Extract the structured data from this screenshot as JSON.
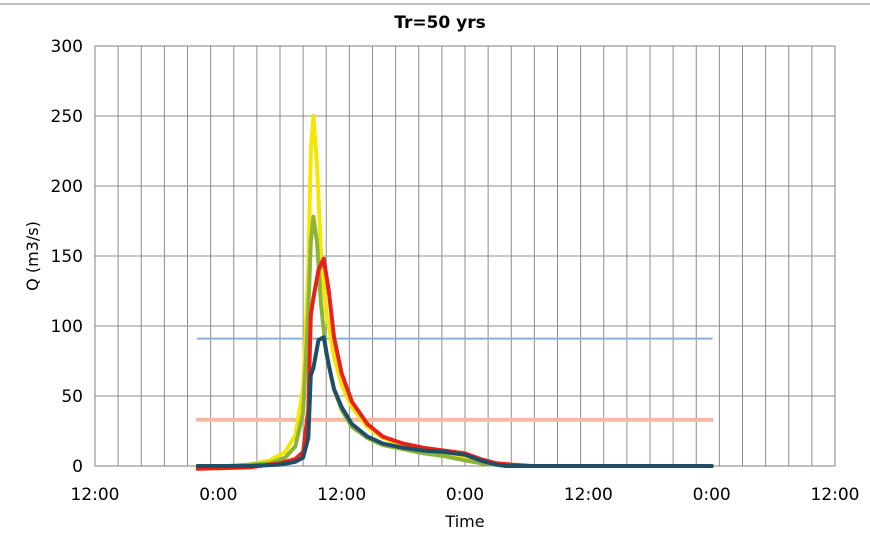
{
  "chart_data": {
    "type": "line",
    "title": "Tr=50 yrs",
    "xlabel": "Time",
    "ylabel": "Q (m3/s)",
    "ylim": [
      0,
      300
    ],
    "xlim_hours": [
      0,
      144
    ],
    "x_tick_labels": [
      "12:00",
      "0:00",
      "12:00",
      "0:00",
      "12:00",
      "0:00",
      "12:00"
    ],
    "y_tick_labels": [
      "0",
      "50",
      "100",
      "150",
      "200",
      "250",
      "300"
    ],
    "y_ticks": [
      0,
      50,
      100,
      150,
      200,
      250,
      300
    ],
    "grid": true,
    "legend": "none",
    "series": [
      {
        "color": "#f5e600",
        "x": [
          20,
          26,
          30,
          34,
          37,
          39,
          40.5,
          41.5,
          42,
          42.5,
          43.2,
          44,
          45,
          46.5,
          48,
          50,
          53,
          56,
          60,
          64,
          68,
          72,
          75,
          78,
          81,
          85,
          90,
          100,
          110,
          120
        ],
        "y": [
          0,
          0,
          1,
          4,
          10,
          22,
          55,
          140,
          225,
          250,
          215,
          150,
          110,
          78,
          58,
          42,
          28,
          20,
          15,
          11,
          8,
          5,
          3,
          2,
          1,
          0,
          0,
          0,
          0,
          0
        ]
      },
      {
        "color": "#8db33b",
        "x": [
          20,
          26,
          30,
          34,
          37,
          39,
          40.5,
          41.5,
          42,
          42.5,
          43.2,
          44,
          45,
          46.5,
          48,
          50,
          53,
          56,
          60,
          64,
          68,
          72,
          75,
          78,
          81,
          85,
          90,
          100,
          110,
          120
        ],
        "y": [
          0,
          0,
          1,
          2,
          6,
          14,
          38,
          110,
          160,
          178,
          160,
          115,
          80,
          55,
          40,
          28,
          20,
          15,
          12,
          9,
          7,
          4,
          2,
          1,
          0,
          0,
          0,
          0,
          0,
          0
        ]
      },
      {
        "color": "#e8221b",
        "x": [
          20,
          30,
          36,
          39,
          40.5,
          41.5,
          42,
          42.5,
          43.5,
          44.5,
          45.5,
          46.5,
          48,
          50,
          53,
          56,
          60,
          64,
          68,
          72,
          75,
          78,
          81,
          85,
          90,
          100,
          110,
          120
        ],
        "y": [
          -2,
          -1,
          2,
          5,
          10,
          40,
          108,
          120,
          140,
          148,
          125,
          92,
          66,
          46,
          30,
          21,
          16,
          13,
          11,
          9,
          5,
          2,
          1,
          0,
          0,
          0,
          0,
          0
        ]
      },
      {
        "color": "#1f4e66",
        "x": [
          20,
          30,
          36,
          39,
          40.5,
          41.5,
          42,
          42.5,
          43.5,
          44.5,
          45.5,
          46.5,
          48,
          50,
          53,
          56,
          60,
          64,
          68,
          72,
          75,
          78,
          80,
          90,
          100,
          110,
          120
        ],
        "y": [
          0,
          0,
          1,
          3,
          6,
          20,
          65,
          70,
          90,
          92,
          72,
          55,
          42,
          30,
          21,
          16,
          13,
          11,
          10,
          8,
          4,
          1,
          0,
          0,
          0,
          0,
          0
        ]
      },
      {
        "color": "#8aaee0",
        "x": [
          20,
          120
        ],
        "y": [
          91,
          91
        ]
      },
      {
        "color": "#f4b9a5",
        "x": [
          20,
          120
        ],
        "y": [
          33,
          33
        ]
      }
    ]
  }
}
